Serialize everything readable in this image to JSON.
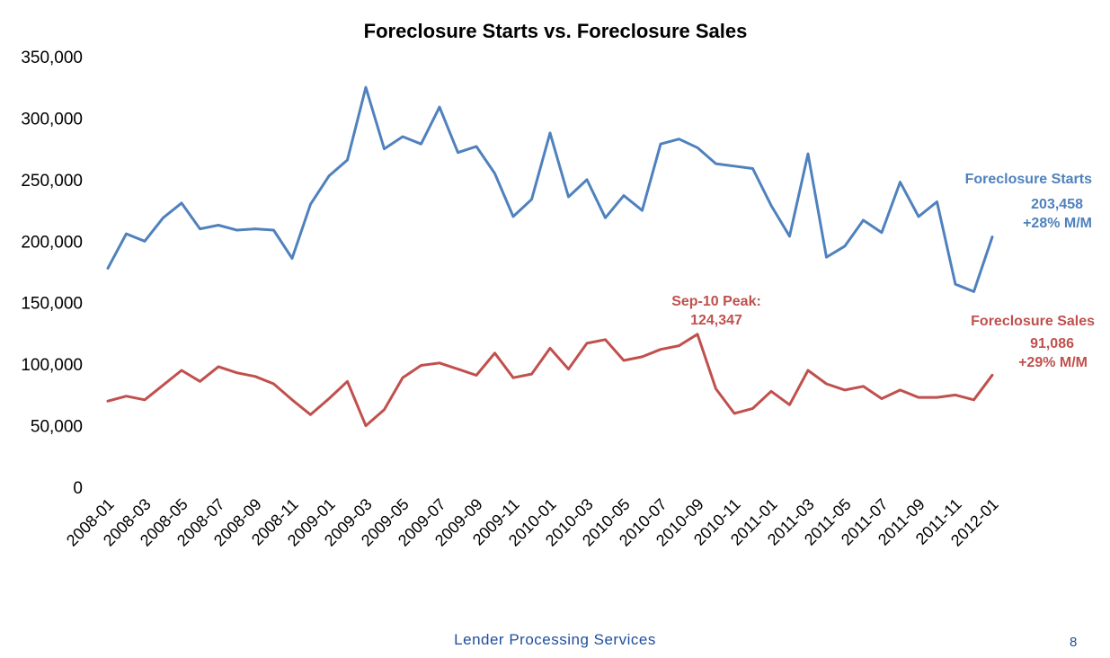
{
  "chart_data": {
    "type": "line",
    "title": "Foreclosure Starts vs. Foreclosure Sales",
    "xlabel": "",
    "ylabel": "",
    "ylim": [
      0,
      350000
    ],
    "yticks": [
      "0",
      "50,000",
      "100,000",
      "150,000",
      "200,000",
      "250,000",
      "300,000",
      "350,000"
    ],
    "x": [
      "2008-01",
      "2008-02",
      "2008-03",
      "2008-04",
      "2008-05",
      "2008-06",
      "2008-07",
      "2008-08",
      "2008-09",
      "2008-10",
      "2008-11",
      "2008-12",
      "2009-01",
      "2009-02",
      "2009-03",
      "2009-04",
      "2009-05",
      "2009-06",
      "2009-07",
      "2009-08",
      "2009-09",
      "2009-10",
      "2009-11",
      "2009-12",
      "2010-01",
      "2010-02",
      "2010-03",
      "2010-04",
      "2010-05",
      "2010-06",
      "2010-07",
      "2010-08",
      "2010-09",
      "2010-10",
      "2010-11",
      "2010-12",
      "2011-01",
      "2011-02",
      "2011-03",
      "2011-04",
      "2011-05",
      "2011-06",
      "2011-07",
      "2011-08",
      "2011-09",
      "2011-10",
      "2011-11",
      "2011-12",
      "2012-01"
    ],
    "xtick_labels": [
      "2008-01",
      "2008-03",
      "2008-05",
      "2008-07",
      "2008-09",
      "2008-11",
      "2009-01",
      "2009-03",
      "2009-05",
      "2009-07",
      "2009-09",
      "2009-11",
      "2010-01",
      "2010-03",
      "2010-05",
      "2010-07",
      "2010-09",
      "2010-11",
      "2011-01",
      "2011-03",
      "2011-05",
      "2011-07",
      "2011-09",
      "2011-11",
      "2012-01"
    ],
    "grid": false,
    "series": [
      {
        "name": "Foreclosure Starts",
        "color": "#4f81bd",
        "values": [
          178000,
          206000,
          200000,
          219000,
          231000,
          210000,
          213000,
          209000,
          210000,
          209000,
          186000,
          230000,
          253000,
          266000,
          325000,
          275000,
          285000,
          279000,
          309000,
          272000,
          277000,
          255000,
          220000,
          234000,
          288000,
          236000,
          250000,
          219000,
          237000,
          225000,
          279000,
          283000,
          276000,
          263000,
          261000,
          259000,
          229000,
          204000,
          271000,
          187000,
          196000,
          217000,
          207000,
          248000,
          220000,
          232000,
          165000,
          159000,
          203458
        ]
      },
      {
        "name": "Foreclosure Sales",
        "color": "#c0504d",
        "values": [
          70000,
          74000,
          71000,
          83000,
          95000,
          86000,
          98000,
          93000,
          90000,
          84000,
          71000,
          59000,
          72000,
          86000,
          50000,
          63000,
          89000,
          99000,
          101000,
          96000,
          91000,
          109000,
          89000,
          92000,
          113000,
          96000,
          117000,
          120000,
          103000,
          106000,
          112000,
          115000,
          124347,
          80000,
          60000,
          64000,
          78000,
          67000,
          95000,
          84000,
          79000,
          82000,
          72000,
          79000,
          73000,
          73000,
          75000,
          71000,
          91086
        ]
      }
    ],
    "annotations": {
      "starts_label": "Foreclosure Starts",
      "starts_value": "203,458",
      "starts_change": "+28% M/M",
      "sales_label": "Foreclosure Sales",
      "sales_value": "91,086",
      "sales_change": "+29% M/M",
      "peak_label": "Sep-10 Peak:",
      "peak_value": "124,347"
    }
  },
  "footer": {
    "company": "Lender  Processing  Services",
    "page_number": "8"
  }
}
